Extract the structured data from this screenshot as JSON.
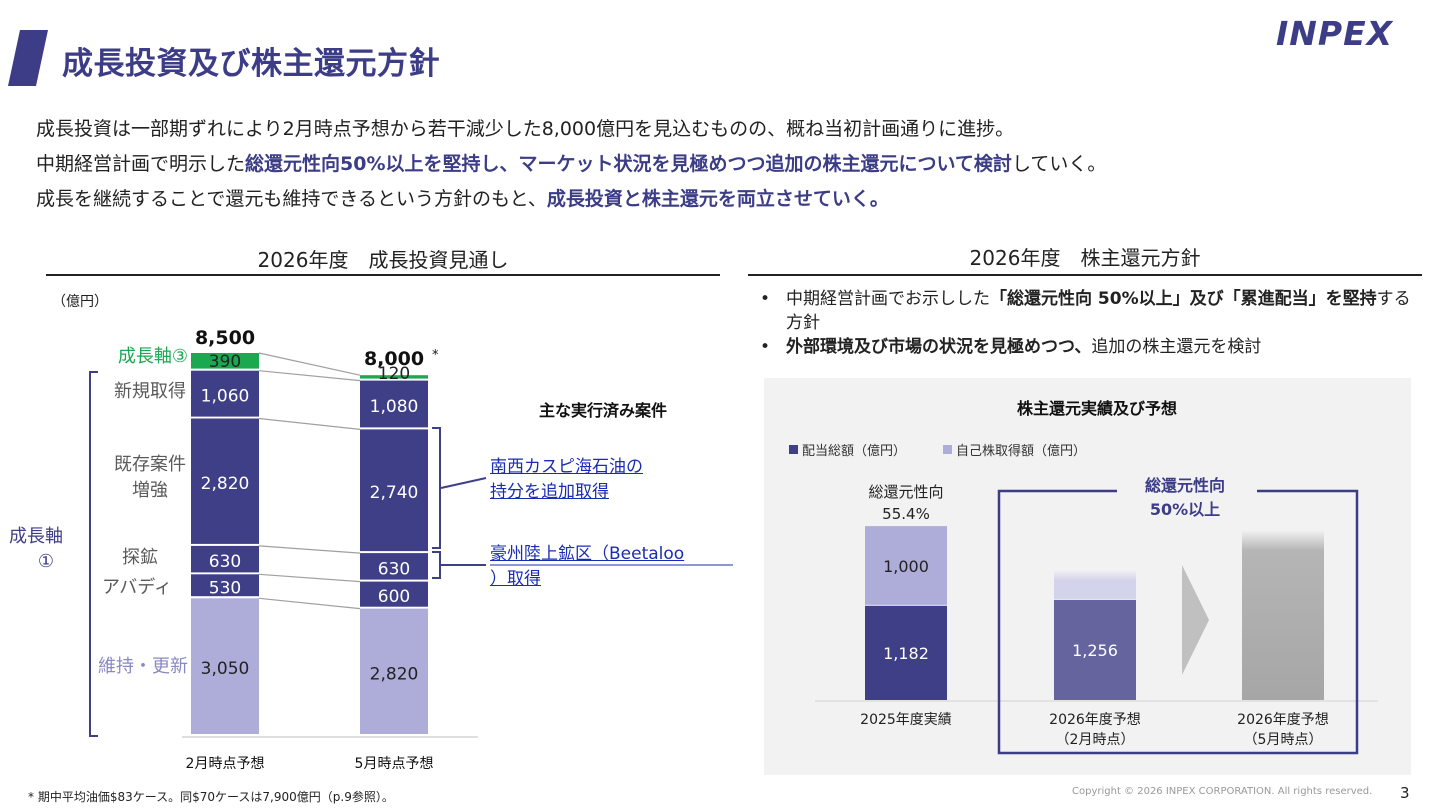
{
  "header": {
    "title": "成長投資及び株主還元方針",
    "logo_text": "INPEX",
    "brand_color": "#3c3d86"
  },
  "lead": {
    "line1": "成長投資は一部期ずれにより2月時点予想から若干減少した8,000億円を見込むものの、概ね当初計画通りに進捗。",
    "line2_pre": "中期経営計画で明示した",
    "line2_bold": "総還元性向50%以上を堅持し、マーケット状況を見極めつつ追加の株主還元について検討",
    "line2_post": "していく。",
    "line3_pre": "成長を継続することで還元も維持できるという方針のもと、",
    "line3_bold": "成長投資と株主還元を両立させていく。"
  },
  "left_section": {
    "title": "2026年度　成長投資見通し",
    "unit": "（億円）",
    "group_label": "成長軸①",
    "executed_title": "主な実行済み案件",
    "links": [
      "南西カスピ海石油の持分を追加取得",
      "豪州陸上鉱区（Beetaloo）取得"
    ]
  },
  "right_section": {
    "title": "2026年度　株主還元方針",
    "bullets": [
      {
        "pre": "中期経営計画でお示しした",
        "bold": "「総還元性向 50%以上」及び「累進配当」を堅持",
        "post": "する方針"
      },
      {
        "pre": "",
        "bold": "外部環境及び市場の状況を見極めつつ、",
        "post": "追加の株主還元を検討"
      }
    ]
  },
  "chart_data": [
    {
      "type": "bar",
      "stacked": true,
      "title": "",
      "ylabel": "（億円）",
      "categories": [
        "2月時点予想",
        "5月時点予想"
      ],
      "totals": [
        "8,500",
        "8,000"
      ],
      "total_note": "*",
      "series": [
        {
          "name": "維持・更新",
          "values": [
            3050,
            2820
          ],
          "labels": [
            "3,050",
            "2,820"
          ],
          "color": "#aeacd8",
          "label_color": "#222222"
        },
        {
          "name": "アバディ",
          "values": [
            530,
            600
          ],
          "labels": [
            "530",
            "600"
          ],
          "color": "#3f3f87",
          "label_color": "#ffffff"
        },
        {
          "name": "探鉱",
          "values": [
            630,
            630
          ],
          "labels": [
            "630",
            "630"
          ],
          "color": "#3f3f87",
          "label_color": "#ffffff"
        },
        {
          "name": "既存案件増強",
          "values": [
            2820,
            2740
          ],
          "labels": [
            "2,820",
            "2,740"
          ],
          "color": "#3f3f87",
          "label_color": "#ffffff"
        },
        {
          "name": "新規取得",
          "values": [
            1060,
            1080
          ],
          "labels": [
            "1,060",
            "1,080"
          ],
          "color": "#3f3f87",
          "label_color": "#ffffff"
        },
        {
          "name": "成長軸③",
          "values": [
            390,
            120
          ],
          "labels": [
            "390",
            "120"
          ],
          "color": "#1aa850",
          "label_color": "#222222"
        }
      ]
    },
    {
      "type": "bar",
      "stacked": true,
      "title": "株主還元実績及び予想",
      "legend": [
        "配当総額（億円）",
        "自己株取得額（億円）"
      ],
      "legend_position": "top-left",
      "categories": [
        "2025年度実績",
        "2026年度予想\n（2月時点）",
        "2026年度予想\n（5月時点）"
      ],
      "series": [
        {
          "name": "配当総額（億円）",
          "values": [
            1182,
            1256,
            null
          ],
          "labels": [
            "1,182",
            "1,256",
            ""
          ],
          "color": "#3f3f87"
        },
        {
          "name": "自己株取得額（億円）",
          "values": [
            1000,
            null,
            null
          ],
          "labels": [
            "1,000",
            "",
            ""
          ],
          "color": "#aeacd8"
        }
      ],
      "annotation_ratio": "総還元性向\n55.4%",
      "annotation_target": "総還元性向\n50%以上",
      "colors": {
        "dividend_alt": "#65649f",
        "buyback_alt": "#d4d3ec",
        "undecided": "#a6a6a6"
      }
    }
  ],
  "footnote": "* 期中平均油価$83ケース。同$70ケースは7,900億円（p.9参照）。",
  "copyright": "Copyright © 2026 INPEX CORPORATION. All rights reserved.",
  "page_number": "3"
}
